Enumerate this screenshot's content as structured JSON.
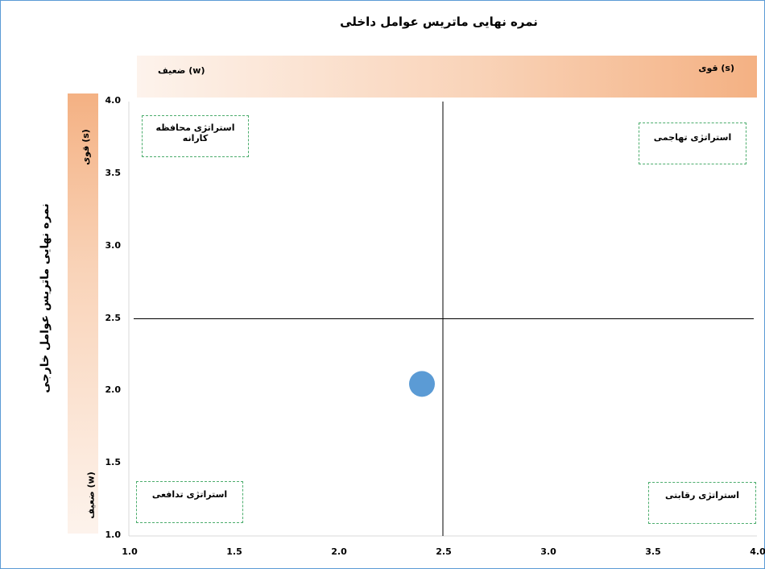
{
  "chart_data": {
    "type": "scatter",
    "title": "نمره نهایی ماتریس عوامل داخلی",
    "xlabel": "",
    "ylabel": "نمره نهایی ماتریس عوامل خارجی",
    "xlim": [
      1.0,
      4.0
    ],
    "ylim": [
      1.0,
      4.0
    ],
    "x_ticks": [
      "1.0",
      "1.5",
      "2.0",
      "2.5",
      "3.0",
      "3.5",
      "4.0"
    ],
    "y_ticks": [
      "4.0",
      "3.5",
      "3.0",
      "2.5",
      "2.0",
      "1.5",
      "1.0"
    ],
    "divider_x": 2.5,
    "divider_y": 2.5,
    "points": [
      {
        "x": 2.4,
        "y": 2.05
      }
    ],
    "point_color": "#5b9bd5",
    "band_color": "#f4b183",
    "x_band": {
      "strong": "قوی (s)",
      "weak": "ضعیف (w)"
    },
    "y_band": {
      "strong": "قوی (s)",
      "weak": "ضعیف (w)"
    },
    "quadrants": {
      "top_left": "استراتژی محافظه کارانه",
      "top_right": "استراتژی تهاجمی",
      "bottom_left": "استراتژی تدافعی",
      "bottom_right": "استراتژی رقابتی"
    },
    "grid": false
  }
}
